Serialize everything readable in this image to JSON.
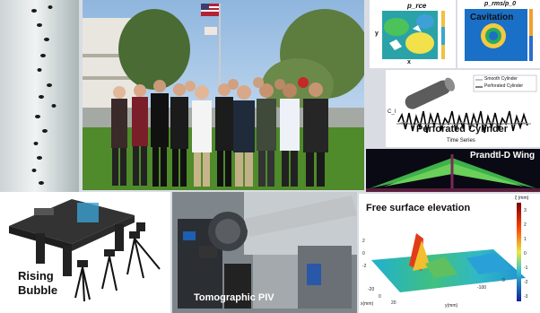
{
  "panels": {
    "rising_bubble": {
      "label": "Rising\nBubble",
      "line1": "Rising",
      "line2": "Bubble"
    },
    "tomographic_piv": {
      "label": "Tomographic PIV"
    },
    "free_surface": {
      "title": "Free surface elevation",
      "colorbar_title": "ξ (mm)",
      "colorbar_ticks": [
        "3",
        "2",
        "1",
        "0",
        "-1",
        "-2",
        "-3"
      ],
      "z_ticks": [
        "2",
        "0",
        "-2"
      ],
      "x_ticks": [
        "-20",
        "0",
        "20"
      ],
      "y_ticks": [
        "0",
        "-100"
      ],
      "x_label": "x(mm)",
      "y_label": "y(mm)"
    },
    "cavitation": {
      "title": "Cavitation",
      "header": "p_rms/p_0"
    },
    "prce": {
      "header": "p_rce",
      "x_label": "x",
      "y_label": "y"
    },
    "perforated_cylinder": {
      "title": "Perforated Cylinder",
      "legend": [
        "Smooth Cylinder",
        "Perforated Cylinder"
      ],
      "y_label": "C_l",
      "x_label": "Time Series"
    },
    "prandtl_wing": {
      "title": "Prandtl-D Wing"
    }
  },
  "colors": {
    "background": "#d9dde3",
    "sky": "#8fb6de",
    "grass": "#4f8a2b",
    "accent_red": "#c62828"
  }
}
